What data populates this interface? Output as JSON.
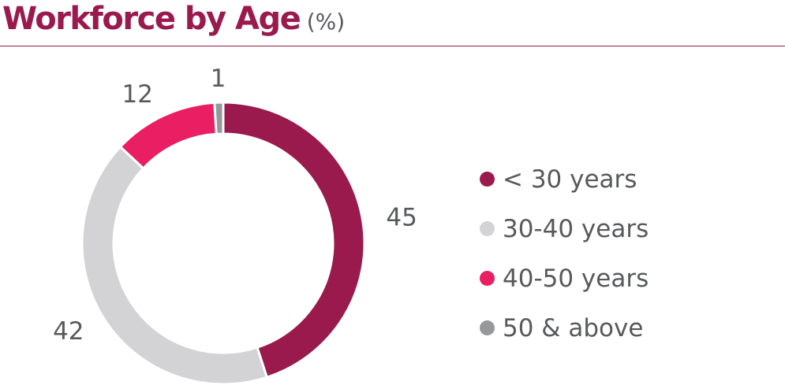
{
  "title": {
    "main": "Workforce by Age",
    "unit": "(%)"
  },
  "colors": {
    "title": "#9b1a4e",
    "rule": "#9b1a4e",
    "text": "#58595b"
  },
  "chart_data": {
    "type": "pie",
    "subtype": "donut",
    "title": "Workforce by Age (%)",
    "legend_position": "right",
    "series": [
      {
        "name": "< 30 years",
        "value": 45,
        "label": "45",
        "color": "#9b1a4e"
      },
      {
        "name": "30-40 years",
        "value": 42,
        "label": "42",
        "color": "#d3d3d5"
      },
      {
        "name": "40-50 years",
        "value": 12,
        "label": "12",
        "color": "#e91e63"
      },
      {
        "name": "50 & above",
        "value": 1,
        "label": "1",
        "color": "#97989a"
      }
    ]
  }
}
